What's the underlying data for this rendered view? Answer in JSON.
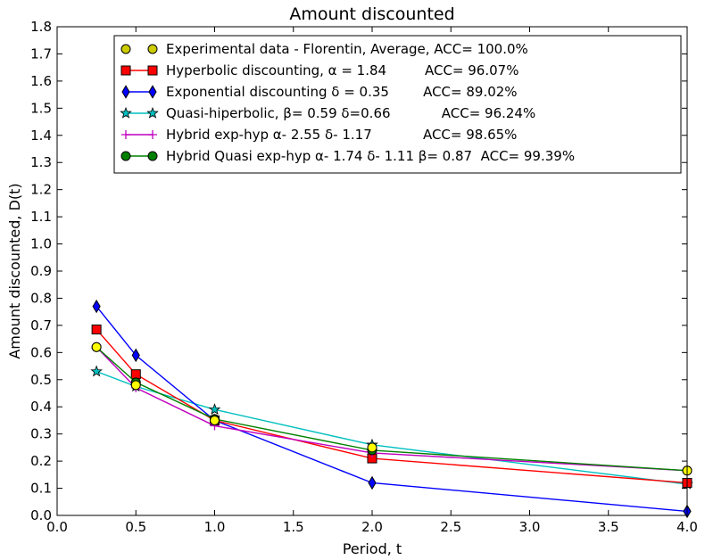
{
  "chart_data": {
    "type": "line",
    "title": "Amount discounted",
    "xlabel": "Period, t",
    "ylabel": "Amount discounted, D(t)",
    "xlim": [
      0.0,
      4.0
    ],
    "ylim": [
      0.0,
      1.8
    ],
    "xticks": [
      "0.0",
      "0.5",
      "1.0",
      "1.5",
      "2.0",
      "2.5",
      "3.0",
      "3.5",
      "4.0"
    ],
    "yticks": [
      "0.0",
      "0.1",
      "0.2",
      "0.3",
      "0.4",
      "0.5",
      "0.6",
      "0.7",
      "0.8",
      "0.9",
      "1.0",
      "1.1",
      "1.2",
      "1.3",
      "1.4",
      "1.5",
      "1.6",
      "1.7",
      "1.8"
    ],
    "grid": false,
    "legend_position": "top-right",
    "x": [
      0.25,
      0.5,
      1.0,
      2.0,
      4.0
    ],
    "series": [
      {
        "name": "Experimental data - Florentin, Average, ACC= 100.0%",
        "color": "#cccc00",
        "marker": "circle",
        "line": false,
        "values": [
          0.62,
          0.48,
          0.35,
          0.25,
          0.165
        ]
      },
      {
        "name": "Hyperbolic discounting, α = 1.84         ACC= 96.07%",
        "color": "#ff0000",
        "marker": "square",
        "line": true,
        "values": [
          0.685,
          0.52,
          0.35,
          0.21,
          0.12
        ]
      },
      {
        "name": "Exponential discounting δ = 0.35        ACC= 89.02%",
        "color": "#0000ff",
        "marker": "diamond",
        "line": true,
        "values": [
          0.77,
          0.59,
          0.35,
          0.12,
          0.015
        ]
      },
      {
        "name": "Quasi-hiperbolic, β= 0.59 δ=0.66            ACC= 96.24%",
        "color": "#00bfbf",
        "marker": "star",
        "line": true,
        "values": [
          0.53,
          0.475,
          0.39,
          0.26,
          0.115
        ]
      },
      {
        "name": "Hybrid exp-hyp α- 2.55 δ- 1.17            ACC= 98.65%",
        "color": "#bf00bf",
        "marker": "plus",
        "line": true,
        "values": [
          0.62,
          0.47,
          0.33,
          0.23,
          0.165
        ]
      },
      {
        "name": "Hybrid Quasi exp-hyp α- 1.74 δ- 1.11 β= 0.87  ACC= 99.39%",
        "color": "#008000",
        "marker": "circle",
        "line": true,
        "values": [
          0.62,
          0.49,
          0.355,
          0.24,
          0.165
        ]
      }
    ],
    "overlay_marker_color": "#ffff00"
  }
}
